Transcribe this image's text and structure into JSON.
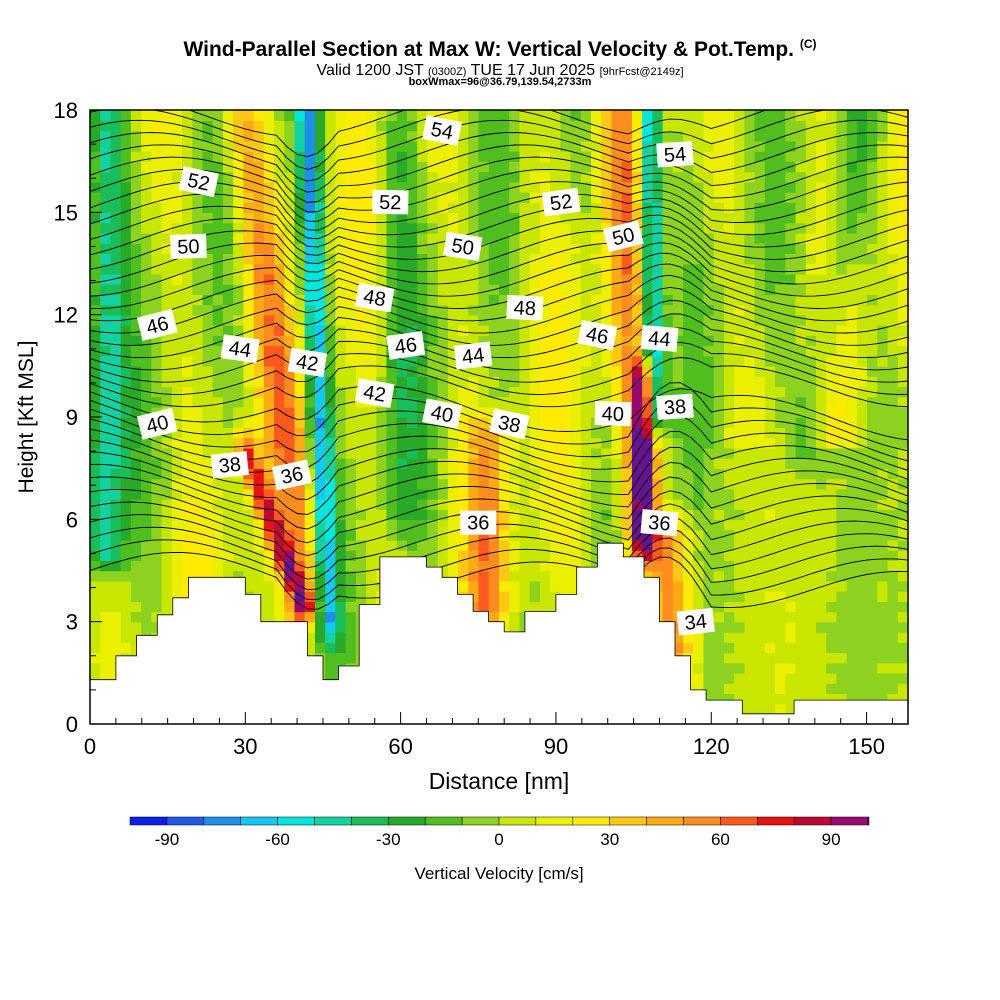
{
  "title": {
    "main": "Wind-Parallel Section at Max W: Vertical Velocity & Pot.Temp.",
    "copyright": "(C)",
    "valid_prefix": "Valid 1200 JST",
    "utc": "(0300Z)",
    "valid_suffix": "TUE 17 Jun 2025",
    "forecast": "[9hrFcst@2149z]",
    "boxinfo": "boxWmax=96@36.79,139.54,2733m"
  },
  "chart_data": {
    "type": "heatmap",
    "xlabel": "Distance [nm]",
    "ylabel": "Height [Kft MSL]",
    "xlim": [
      0,
      158
    ],
    "ylim": [
      0,
      18
    ],
    "xticks": [
      0,
      30,
      60,
      90,
      120,
      150
    ],
    "yticks": [
      0,
      3,
      6,
      9,
      12,
      15,
      18
    ],
    "colorbar": {
      "label": "Vertical Velocity [cm/s]",
      "ticks": [
        -90,
        -60,
        -30,
        0,
        30,
        60,
        90
      ],
      "levels": [
        -100,
        -90,
        -80,
        -70,
        -60,
        -50,
        -40,
        -30,
        -20,
        -10,
        0,
        10,
        20,
        30,
        40,
        50,
        60,
        70,
        80,
        90,
        100
      ],
      "colors": [
        "#0a1ee6",
        "#1e5ae6",
        "#1e8ee6",
        "#14c8f0",
        "#00e6dc",
        "#14d2a0",
        "#19be5a",
        "#28aa28",
        "#50be1e",
        "#8cd21e",
        "#c8e600",
        "#ebf000",
        "#ffeb00",
        "#ffc814",
        "#ffaa14",
        "#ff8c1e",
        "#ff5a1e",
        "#e61414",
        "#be0a32",
        "#960a6e",
        "#64148c"
      ]
    },
    "terrain": [
      [
        0,
        1.3
      ],
      [
        5,
        1.3
      ],
      [
        5,
        2.0
      ],
      [
        9,
        2.0
      ],
      [
        9,
        2.6
      ],
      [
        13,
        2.6
      ],
      [
        13,
        3.2
      ],
      [
        16,
        3.2
      ],
      [
        16,
        3.7
      ],
      [
        19,
        3.7
      ],
      [
        19,
        4.3
      ],
      [
        30,
        4.3
      ],
      [
        30,
        3.8
      ],
      [
        33,
        3.8
      ],
      [
        33,
        3.0
      ],
      [
        42,
        3.0
      ],
      [
        42,
        2.0
      ],
      [
        45,
        2.0
      ],
      [
        45,
        1.3
      ],
      [
        48,
        1.3
      ],
      [
        48,
        1.7
      ],
      [
        52,
        1.7
      ],
      [
        52,
        3.5
      ],
      [
        56,
        3.5
      ],
      [
        56,
        4.9
      ],
      [
        65,
        4.9
      ],
      [
        65,
        4.6
      ],
      [
        68,
        4.6
      ],
      [
        68,
        4.3
      ],
      [
        71,
        4.3
      ],
      [
        71,
        3.8
      ],
      [
        74,
        3.8
      ],
      [
        74,
        3.3
      ],
      [
        77,
        3.3
      ],
      [
        77,
        3.0
      ],
      [
        80,
        3.0
      ],
      [
        80,
        2.7
      ],
      [
        84,
        2.7
      ],
      [
        84,
        3.3
      ],
      [
        90,
        3.3
      ],
      [
        90,
        3.8
      ],
      [
        94,
        3.8
      ],
      [
        94,
        4.6
      ],
      [
        98,
        4.6
      ],
      [
        98,
        5.3
      ],
      [
        103,
        5.3
      ],
      [
        103,
        4.9
      ],
      [
        107,
        4.9
      ],
      [
        107,
        4.3
      ],
      [
        110,
        4.3
      ],
      [
        110,
        3.0
      ],
      [
        113,
        3.0
      ],
      [
        113,
        2.0
      ],
      [
        116,
        2.0
      ],
      [
        116,
        1.0
      ],
      [
        119,
        1.0
      ],
      [
        119,
        0.7
      ],
      [
        126,
        0.7
      ],
      [
        126,
        0.3
      ],
      [
        136,
        0.3
      ],
      [
        136,
        0.7
      ],
      [
        158,
        0.7
      ]
    ],
    "vertical_velocity_features": [
      {
        "x_base": 3,
        "x_top": 3,
        "y_bottom": 5,
        "y_top": 18,
        "value": -50
      },
      {
        "x_base": 43,
        "x_top": 29,
        "y_bottom": 3.5,
        "y_top": 18,
        "value": 40
      },
      {
        "x_base": 41,
        "x_top": 30,
        "y_bottom": 3.5,
        "y_top": 8,
        "value": 65
      },
      {
        "x_base": 46,
        "x_top": 42,
        "y_bottom": 3,
        "y_top": 18,
        "value": -70
      },
      {
        "x_base": 77,
        "x_top": 77,
        "y_bottom": 3.5,
        "y_top": 8.5,
        "value": 40
      },
      {
        "x_base": 106,
        "x_top": 102,
        "y_bottom": 4.8,
        "y_top": 18,
        "value": 40
      },
      {
        "x_base": 107,
        "x_top": 107,
        "y_bottom": 5.5,
        "y_top": 10,
        "value": 90
      },
      {
        "x_base": 109,
        "x_top": 108,
        "y_bottom": 9,
        "y_top": 18,
        "value": -80
      },
      {
        "x_base": 112,
        "x_top": 112,
        "y_bottom": 2,
        "y_top": 5.5,
        "value": 40
      },
      {
        "x_base": 60,
        "x_top": 60,
        "y_bottom": 6,
        "y_top": 18,
        "value": -20
      },
      {
        "x_base": 138,
        "x_top": 150,
        "y_bottom": 8,
        "y_top": 18,
        "value": -20
      }
    ],
    "potential_temperature_labels": [
      {
        "text": "54",
        "x": 68,
        "y": 17.4
      },
      {
        "text": "54",
        "x": 113,
        "y": 16.7
      },
      {
        "text": "52",
        "x": 21,
        "y": 15.9
      },
      {
        "text": "52",
        "x": 58,
        "y": 15.3
      },
      {
        "text": "52",
        "x": 91,
        "y": 15.3
      },
      {
        "text": "50",
        "x": 19,
        "y": 14.0
      },
      {
        "text": "50",
        "x": 72,
        "y": 14.0
      },
      {
        "text": "50",
        "x": 103,
        "y": 14.3
      },
      {
        "text": "48",
        "x": 55,
        "y": 12.5
      },
      {
        "text": "48",
        "x": 84,
        "y": 12.2
      },
      {
        "text": "46",
        "x": 13,
        "y": 11.7
      },
      {
        "text": "46",
        "x": 61,
        "y": 11.1
      },
      {
        "text": "46",
        "x": 98,
        "y": 11.4
      },
      {
        "text": "44",
        "x": 29,
        "y": 11.0
      },
      {
        "text": "44",
        "x": 74,
        "y": 10.8
      },
      {
        "text": "44",
        "x": 110,
        "y": 11.3
      },
      {
        "text": "42",
        "x": 42,
        "y": 10.6
      },
      {
        "text": "42",
        "x": 55,
        "y": 9.7
      },
      {
        "text": "40",
        "x": 13,
        "y": 8.8
      },
      {
        "text": "40",
        "x": 68,
        "y": 9.1
      },
      {
        "text": "40",
        "x": 101,
        "y": 9.1
      },
      {
        "text": "38",
        "x": 27,
        "y": 7.6
      },
      {
        "text": "38",
        "x": 81,
        "y": 8.8
      },
      {
        "text": "38",
        "x": 113,
        "y": 9.3
      },
      {
        "text": "36",
        "x": 39,
        "y": 7.3
      },
      {
        "text": "36",
        "x": 75,
        "y": 5.9
      },
      {
        "text": "36",
        "x": 110,
        "y": 5.9
      },
      {
        "text": "34",
        "x": 117,
        "y": 3.0
      }
    ]
  }
}
